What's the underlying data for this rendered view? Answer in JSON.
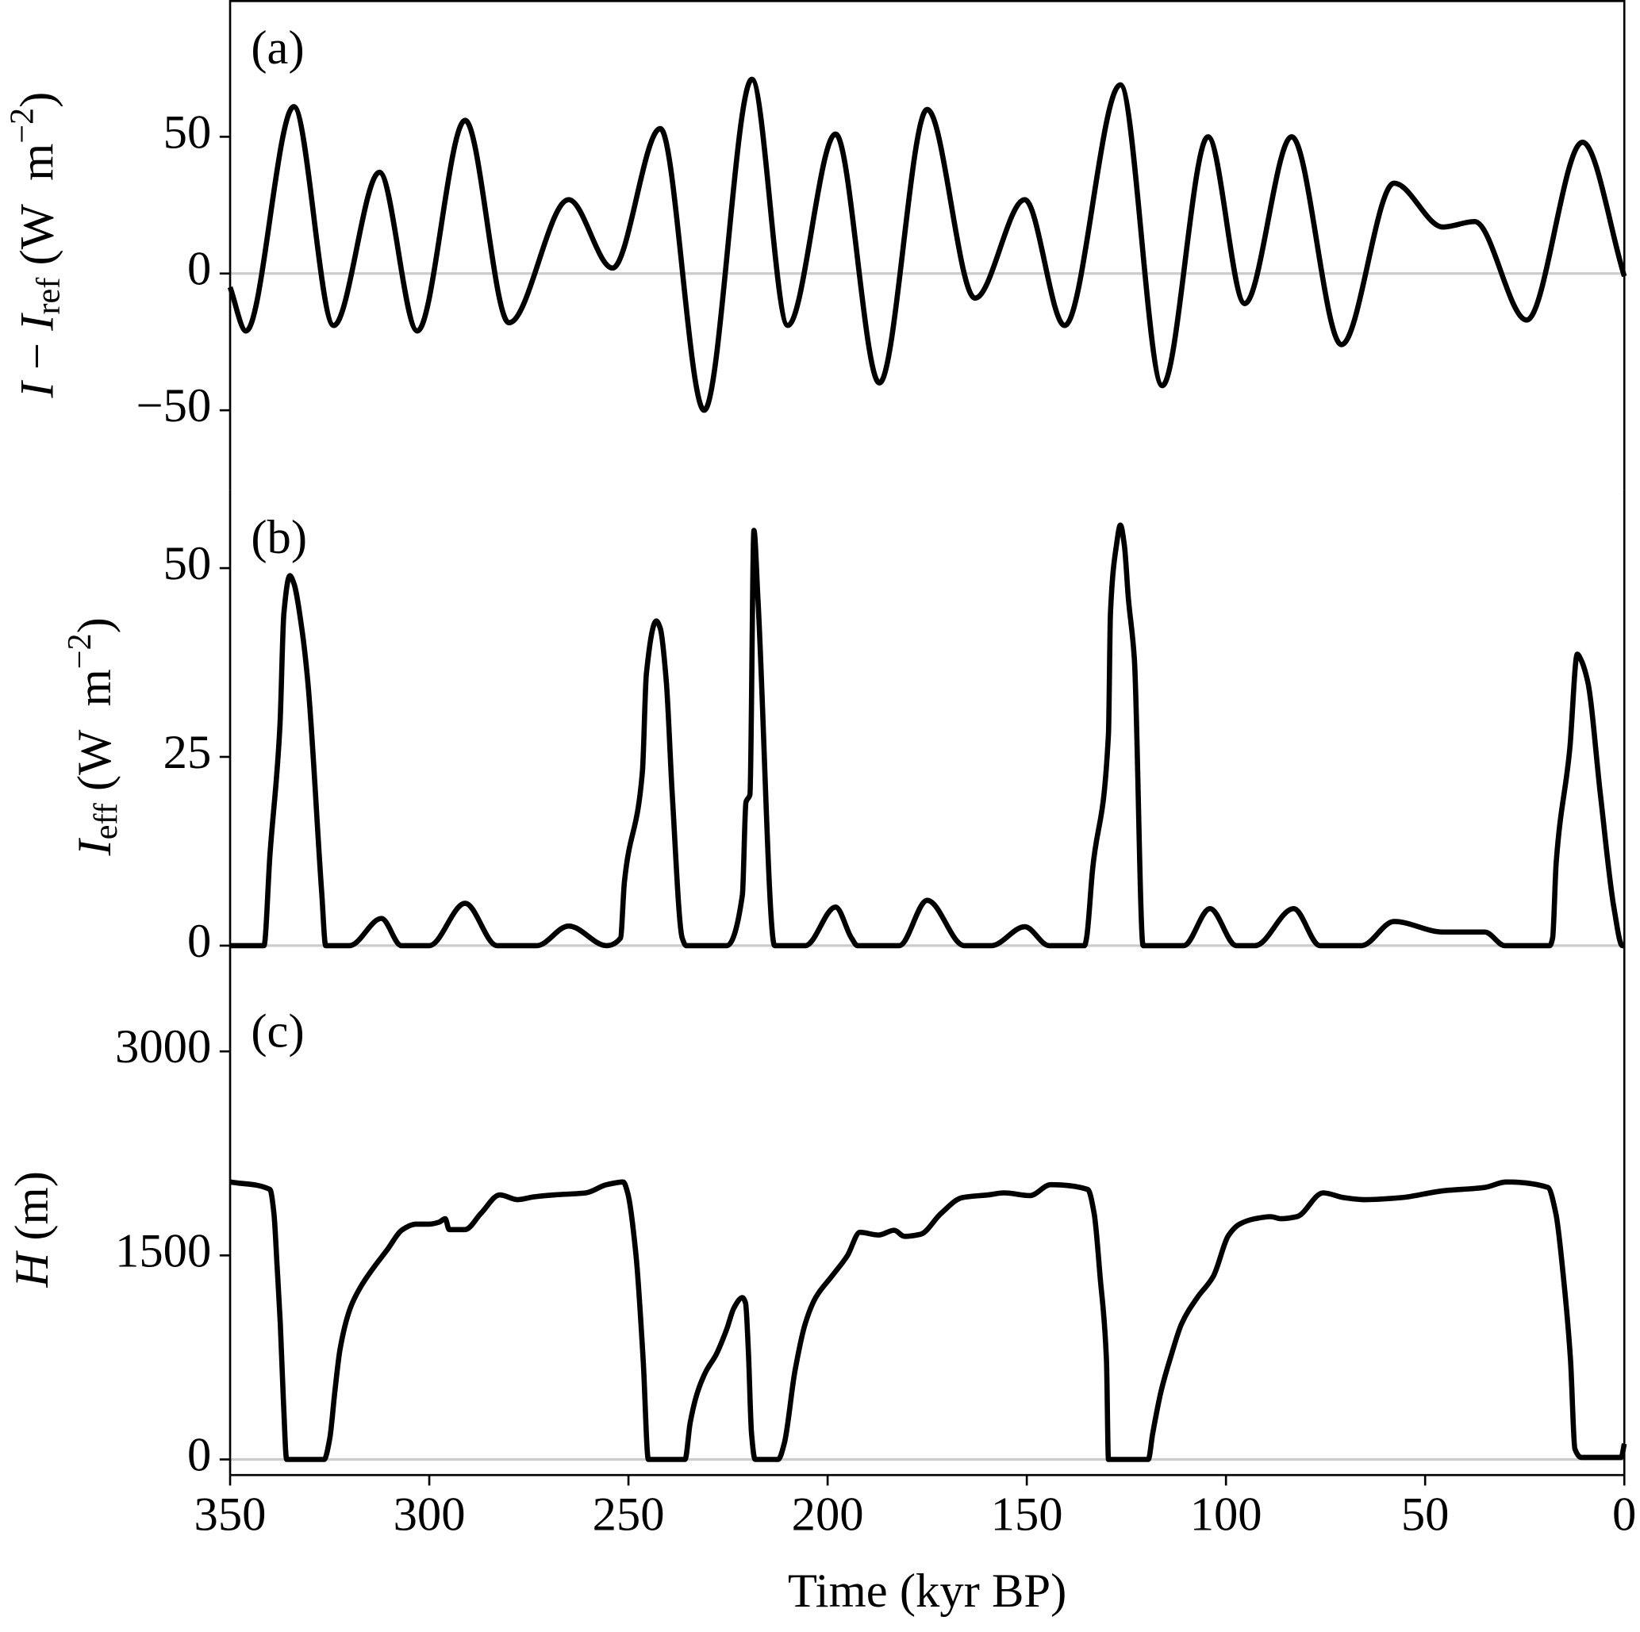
{
  "chart_data": [
    {
      "type": "line",
      "label": "(a)",
      "ylabel_parts": [
        {
          "text": "I",
          "style": "italic"
        },
        {
          "text": " − "
        },
        {
          "text": "I",
          "style": "italic"
        },
        {
          "text": "ref",
          "script": "sub"
        },
        {
          "text": " (W  m"
        },
        {
          "text": "−2",
          "script": "sup"
        },
        {
          "text": ")"
        }
      ],
      "x": [
        350,
        346,
        334,
        324,
        312.5,
        303,
        291,
        280,
        265,
        254,
        242,
        231,
        219,
        210,
        198,
        187,
        175,
        163,
        150.5,
        140.5,
        126.5,
        116,
        104.5,
        95.3,
        83.5,
        71,
        57.8,
        45.5,
        37.6,
        24.5,
        10.5,
        0
      ],
      "values": [
        -5,
        -21,
        61,
        -19,
        37,
        -21,
        56,
        -18,
        27,
        2,
        53,
        -50,
        71,
        -19,
        51,
        -40,
        60,
        -9,
        27,
        -19,
        69,
        -41,
        50,
        -11,
        50,
        -26,
        33,
        17,
        19,
        -17,
        48,
        -1
      ],
      "color": "#000000",
      "xlim": [
        350,
        0
      ],
      "ylim": [
        -79,
        100
      ],
      "yticks": [
        {
          "value": -50,
          "label": "−50"
        },
        0,
        50
      ],
      "zero_line": true
    },
    {
      "type": "line",
      "label": "(b)",
      "ylabel_parts": [
        {
          "text": "I",
          "style": "italic"
        },
        {
          "text": "eff",
          "script": "sub"
        },
        {
          "text": " (W  m"
        },
        {
          "text": "−2",
          "script": "sup"
        },
        {
          "text": ")"
        }
      ],
      "x": [
        350,
        341.5,
        340,
        337.5,
        336.5,
        335,
        334,
        332,
        330.5,
        327,
        326,
        320,
        312,
        307,
        300,
        291,
        283,
        273,
        265,
        255.5,
        252,
        251,
        246.5,
        245.5,
        243,
        242,
        240.5,
        239,
        236.5,
        235.5,
        225.3,
        221.4,
        220.5,
        219.5,
        218.5,
        217.5,
        213.3,
        205.6,
        198,
        194,
        192.5,
        182,
        175,
        165.7,
        158.9,
        150.5,
        144.4,
        135.5,
        135,
        133.5,
        129.5,
        129,
        127.5,
        126.5,
        125.5,
        124.5,
        123,
        120.8,
        110.6,
        104,
        97.4,
        92.7,
        83,
        76.4,
        66,
        57.8,
        45.5,
        35,
        30,
        18.7,
        18,
        17.1,
        13.7,
        11.8,
        11,
        9.2,
        6,
        2.6,
        0.5,
        0
      ],
      "values": [
        0,
        0,
        12,
        29,
        44,
        49,
        48,
        42,
        35,
        7,
        0,
        0,
        3.6,
        0,
        0,
        5.6,
        0,
        0,
        2.6,
        0,
        1,
        8.5,
        23,
        36,
        43,
        42,
        35,
        20,
        1,
        0,
        0,
        6.7,
        19,
        20,
        55,
        46,
        0,
        0,
        5.1,
        1,
        0,
        0,
        6,
        0,
        0,
        2.5,
        0,
        0,
        1,
        10,
        28,
        44,
        53,
        55.7,
        53,
        46,
        38,
        0,
        0,
        4.9,
        0,
        0,
        4.9,
        0,
        0,
        3.2,
        1.8,
        1.8,
        0,
        0,
        1,
        11,
        26,
        38.6,
        38,
        35,
        20,
        5,
        0,
        0
      ],
      "color": "#000000",
      "xlim": [
        350,
        0
      ],
      "ylim": [
        -5,
        60.4
      ],
      "yticks": [
        0,
        25,
        50
      ],
      "zero_line": true
    },
    {
      "type": "line",
      "label": "(c)",
      "ylabel_parts": [
        {
          "text": "H",
          "style": "italic"
        },
        {
          "text": " (m)"
        }
      ],
      "x": [
        350,
        340,
        339,
        338.2,
        337.4,
        336.6,
        335.8,
        326.4,
        325,
        323.7,
        322.4,
        319.8,
        317.2,
        314.6,
        310.6,
        306.7,
        303.3,
        300,
        297.5,
        296,
        295,
        291,
        287,
        282.3,
        277.8,
        273.9,
        268.6,
        260.7,
        255.5,
        251.3,
        250.2,
        248.1,
        246.3,
        245,
        235.8,
        234.5,
        232.6,
        230.5,
        228,
        225.3,
        223.5,
        221.4,
        220.6,
        219.9,
        219.1,
        218.2,
        212.4,
        210.9,
        208.2,
        205.6,
        203,
        199,
        195,
        191.9,
        187.2,
        183.3,
        180.7,
        176.7,
        171.5,
        166.2,
        159.7,
        155.7,
        149.2,
        144,
        134.7,
        133.1,
        131.6,
        130,
        129.5,
        119.5,
        118.4,
        116.3,
        113.7,
        111.1,
        107.2,
        103.2,
        99.3,
        96.6,
        92.7,
        88.8,
        86.2,
        82.2,
        75.6,
        70.4,
        65.1,
        56,
        45.5,
        35,
        29.7,
        19.2,
        17.2,
        15.3,
        13.5,
        12.4,
        10.8,
        0.8,
        0
      ],
      "values": [
        2040,
        1985,
        1810,
        1420,
        1000,
        420,
        0,
        0,
        150,
        500,
        810,
        1115,
        1270,
        1385,
        1540,
        1690,
        1730,
        1730,
        1745,
        1770,
        1690,
        1690,
        1810,
        1945,
        1910,
        1930,
        1945,
        1960,
        2020,
        2040,
        1960,
        1500,
        730,
        0,
        0,
        270,
        500,
        650,
        770,
        960,
        1115,
        1190,
        1150,
        800,
        190,
        0,
        0,
        115,
        650,
        1000,
        1190,
        1345,
        1500,
        1670,
        1650,
        1685,
        1640,
        1655,
        1810,
        1925,
        1945,
        1960,
        1940,
        2020,
        1985,
        1810,
        1345,
        730,
        0,
        0,
        190,
        500,
        770,
        1000,
        1190,
        1345,
        1650,
        1730,
        1770,
        1785,
        1770,
        1785,
        1960,
        1925,
        1910,
        1925,
        1975,
        2000,
        2040,
        2000,
        1810,
        1345,
        730,
        77,
        15,
        15,
        115
      ],
      "color": "#000000",
      "xlim": [
        350,
        0
      ],
      "ylim": [
        -115,
        3500
      ],
      "yticks": [
        0,
        1500,
        3000
      ],
      "zero_line": true,
      "xticks": [
        350,
        300,
        250,
        200,
        150,
        100,
        50,
        0
      ],
      "xlabel": "Time (kyr BP)"
    }
  ]
}
